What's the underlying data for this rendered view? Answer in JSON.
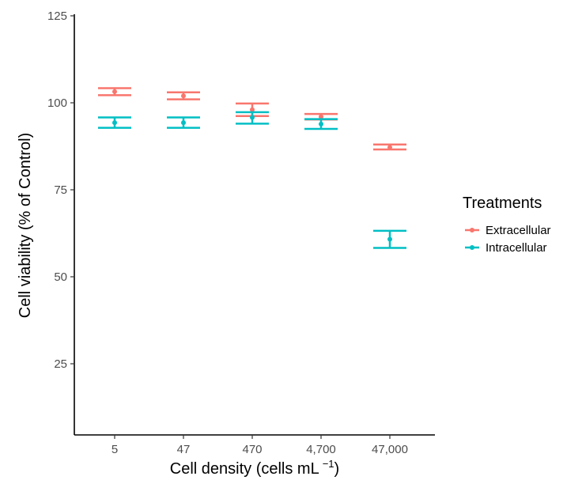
{
  "chart_data": {
    "type": "scatter",
    "title": "",
    "xlabel": "Cell density (cells mL",
    "xlabel_sup": "−1",
    "xlabel_suffix": ")",
    "ylabel": "Cell viability (% of Control)",
    "categories": [
      "5",
      "47",
      "470",
      "4,700",
      "47,000"
    ],
    "ylim": [
      5,
      125
    ],
    "yticks": [
      25,
      50,
      75,
      100,
      125
    ],
    "grid": false,
    "legend": {
      "title": "Treatments",
      "position": "right"
    },
    "series": [
      {
        "name": "Extracellular",
        "color": "#F8766D",
        "mean": [
          103.2,
          102.0,
          98.0,
          96.0,
          87.2
        ],
        "lower": [
          102.2,
          101.0,
          96.2,
          95.2,
          86.6
        ],
        "upper": [
          104.2,
          103.0,
          99.8,
          96.8,
          88.0
        ]
      },
      {
        "name": "Intracellular",
        "color": "#00BFC4",
        "mean": [
          94.3,
          94.3,
          95.8,
          93.9,
          60.8
        ],
        "lower": [
          92.8,
          92.8,
          94.0,
          92.5,
          58.3
        ],
        "upper": [
          95.8,
          95.8,
          97.3,
          95.3,
          63.2
        ]
      }
    ]
  }
}
